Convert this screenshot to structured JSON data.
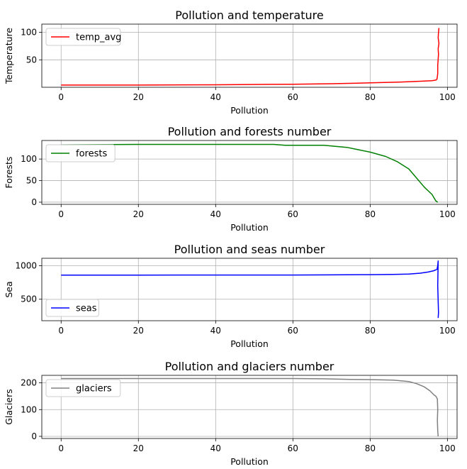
{
  "chart_data": [
    {
      "type": "line",
      "title": "Pollution and temperature",
      "xlabel": "Pollution",
      "ylabel": "Temperature",
      "xlim": [
        -5,
        102.5
      ],
      "ylim": [
        0,
        115
      ],
      "xticks": [
        0,
        20,
        40,
        60,
        80,
        100
      ],
      "yticks": [
        50,
        100
      ],
      "grid": true,
      "legend": "upper left",
      "series": [
        {
          "name": "temp_avg",
          "color": "#ff0000",
          "x": [
            0,
            20,
            40,
            60,
            70,
            80,
            88,
            93,
            96,
            97,
            97.3,
            97.5,
            97.5,
            97.7,
            97.6,
            97.8,
            97.6,
            97.7,
            97.8
          ],
          "y": [
            4,
            4,
            4.5,
            5.5,
            6.5,
            8,
            9.5,
            11,
            12,
            13,
            15,
            25,
            40,
            60,
            70,
            80,
            90,
            100,
            108
          ]
        }
      ]
    },
    {
      "type": "line",
      "title": "Pollution and forests number",
      "xlabel": "Pollution",
      "ylabel": "Forests",
      "xlim": [
        -5,
        102.5
      ],
      "ylim": [
        -5,
        143
      ],
      "xticks": [
        0,
        20,
        40,
        60,
        80,
        100
      ],
      "yticks": [
        0,
        50,
        100
      ],
      "grid": true,
      "legend": "upper left",
      "series": [
        {
          "name": "forests",
          "color": "#008000",
          "x": [
            0,
            20,
            40,
            55,
            58,
            62,
            68,
            74,
            80,
            84,
            87,
            90,
            92,
            94,
            96,
            97,
            97.5
          ],
          "y": [
            133,
            134,
            134,
            134,
            132,
            132,
            132,
            127,
            116,
            106,
            94,
            77,
            56,
            35,
            18,
            3,
            0
          ]
        }
      ]
    },
    {
      "type": "line",
      "title": "Pollution and seas number",
      "xlabel": "Pollution",
      "ylabel": "Sea",
      "xlim": [
        -5,
        102.5
      ],
      "ylim": [
        180,
        1110
      ],
      "xticks": [
        0,
        20,
        40,
        60,
        80,
        100
      ],
      "yticks": [
        500,
        1000
      ],
      "grid": true,
      "legend": "lower left",
      "series": [
        {
          "name": "seas",
          "color": "#0000ff",
          "x": [
            0,
            20,
            40,
            60,
            70,
            80,
            86,
            90,
            93,
            95,
            96.5,
            97.3,
            97.5,
            97.6,
            97.5,
            97.7,
            97.6
          ],
          "y": [
            860,
            860,
            861,
            861,
            863,
            866,
            869,
            875,
            888,
            905,
            925,
            945,
            1000,
            1070,
            700,
            300,
            220
          ]
        }
      ]
    },
    {
      "type": "line",
      "title": "Pollution and glaciers number",
      "xlabel": "Pollution",
      "ylabel": "Glaciers",
      "xlim": [
        -5,
        102.5
      ],
      "ylim": [
        -8,
        228
      ],
      "xticks": [
        0,
        20,
        40,
        60,
        80,
        100
      ],
      "yticks": [
        0,
        100,
        200
      ],
      "grid": true,
      "legend": "upper left",
      "series": [
        {
          "name": "glaciers",
          "color": "#808080",
          "x": [
            0,
            20,
            40,
            60,
            68,
            75,
            80,
            86,
            90,
            92,
            94,
            95.5,
            96.5,
            97,
            97.4,
            97.5,
            97.4,
            97.5,
            97.6
          ],
          "y": [
            216,
            216,
            216,
            216,
            215,
            213,
            212,
            210,
            205,
            197,
            185,
            170,
            155,
            150,
            140,
            100,
            60,
            20,
            0
          ]
        }
      ]
    }
  ]
}
